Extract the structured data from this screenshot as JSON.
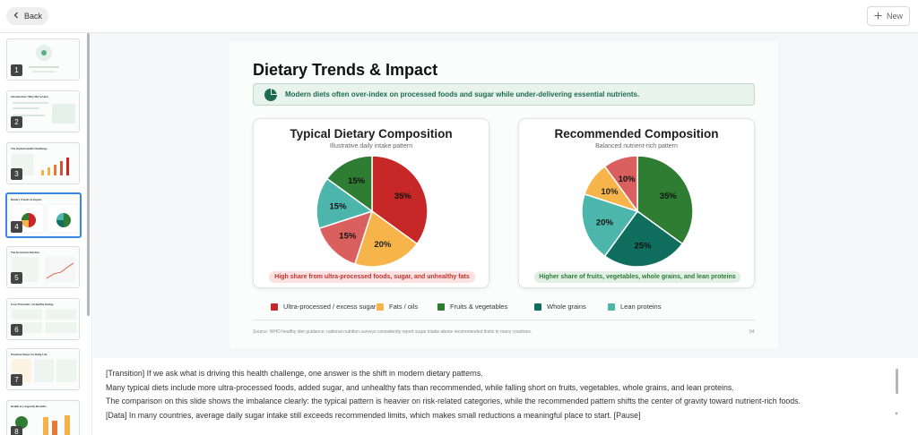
{
  "toolbar": {
    "back_label": "Back",
    "new_label": "New"
  },
  "thumbnails": [
    {
      "num": "1",
      "title": ""
    },
    {
      "num": "2",
      "title": "Introduction: Why We're Here"
    },
    {
      "num": "3",
      "title": "The Global Health Challenge"
    },
    {
      "num": "4",
      "title": "Dietary Trends & Impact"
    },
    {
      "num": "5",
      "title": "The Economic Burden"
    },
    {
      "num": "6",
      "title": "Core Principles of Healthy Eating"
    },
    {
      "num": "7",
      "title": "Practical Steps for Daily Life"
    },
    {
      "num": "8",
      "title": "Health & Longevity Benefits"
    }
  ],
  "slide": {
    "title": "Dietary Trends & Impact",
    "banner": "Modern diets often over-index on processed foods and sugar while under-delivering essential nutrients.",
    "source": "Source: WHO healthy diet guidance; national nutrition surveys consistently report sugar intake above recommended limits in many countries.",
    "page": "04"
  },
  "colors": {
    "ultra": "#c62828",
    "fats": "#f7b44a",
    "fruits": "#2e7d32",
    "grains": "#0f6e5e",
    "proteins": "#4db6ac",
    "red_tint": "#d9605f"
  },
  "legend": [
    {
      "label": "Ultra-processed / excess sugar",
      "color": "#c62828"
    },
    {
      "label": "Fats / oils",
      "color": "#f7b44a"
    },
    {
      "label": "Fruits & vegetables",
      "color": "#2e7d32"
    },
    {
      "label": "Whole grains",
      "color": "#0f6e5e"
    },
    {
      "label": "Lean proteins",
      "color": "#4db6ac"
    }
  ],
  "chart_data": [
    {
      "type": "pie",
      "title": "Typical Dietary Composition",
      "subtitle": "Illustrative daily intake pattern",
      "categories": [
        "Ultra-processed / excess sugar",
        "Fats / oils",
        "",
        "",
        "Fruits & vegetables"
      ],
      "values": [
        35,
        20,
        15,
        15,
        15
      ],
      "labels": [
        "35%",
        "20%",
        "15%",
        "15%",
        "15%"
      ],
      "colors": [
        "#c62828",
        "#f7b44a",
        "#d9605f",
        "#4db6ac",
        "#2e7d32"
      ],
      "note": "High share from ultra-processed foods, sugar, and unhealthy fats"
    },
    {
      "type": "pie",
      "title": "Recommended Composition",
      "subtitle": "Balanced nutrient-rich pattern",
      "categories": [
        "Fruits & vegetables",
        "Whole grains",
        "Lean proteins",
        "Fats / oils",
        ""
      ],
      "values": [
        35,
        25,
        20,
        10,
        10
      ],
      "labels": [
        "35%",
        "25%",
        "20%",
        "10%",
        "10%"
      ],
      "colors": [
        "#2e7d32",
        "#0f6e5e",
        "#4db6ac",
        "#f7b44a",
        "#d9605f"
      ],
      "note": "Higher share of fruits, vegetables, whole grains, and lean proteins"
    }
  ],
  "notes": [
    "[Transition] If we ask what is driving this health challenge, one answer is the shift in modern dietary patterns.",
    "Many typical diets include more ultra-processed foods, added sugar, and unhealthy fats than recommended, while falling short on fruits, vegetables, whole grains, and lean proteins.",
    "The comparison on this slide shows the imbalance clearly: the typical pattern is heavier on risk-related categories, while the recommended pattern shifts the center of gravity toward nutrient-rich foods.",
    "[Data] In many countries, average daily sugar intake still exceeds recommended limits, which makes small reductions a meaningful place to start. [Pause]"
  ]
}
